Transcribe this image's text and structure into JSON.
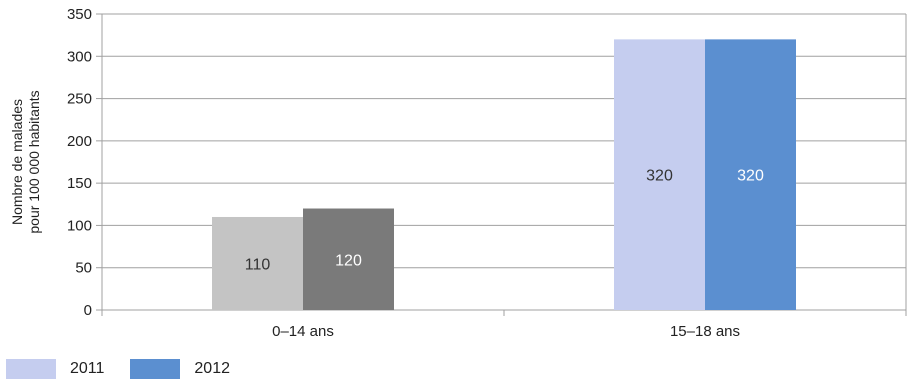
{
  "chart_data": {
    "type": "bar",
    "title": "",
    "ylabel_lines": [
      "Nombre de malades",
      "pour 100 000 habitants"
    ],
    "xlabel": "",
    "categories": [
      "0–14 ans",
      "15–18 ans"
    ],
    "series": [
      {
        "name": "2011",
        "values": [
          110,
          320
        ]
      },
      {
        "name": "2012",
        "values": [
          120,
          320
        ]
      }
    ],
    "ylim": [
      0,
      350
    ],
    "yticks": [
      "0",
      "50",
      "100",
      "150",
      "200",
      "250",
      "300",
      "350"
    ],
    "grid": true,
    "legend": "bottom-left",
    "colors": {
      "legend_2011": "#c5cdef",
      "legend_2012": "#5b8fd0",
      "cat0_2011": "#c4c4c4",
      "cat0_2012": "#7a7a7a",
      "cat1_2011": "#c5cdef",
      "cat1_2012": "#5b8fd0",
      "label_dark": "#333333",
      "label_light": "#ffffff",
      "grid": "#a0a0a0"
    }
  }
}
